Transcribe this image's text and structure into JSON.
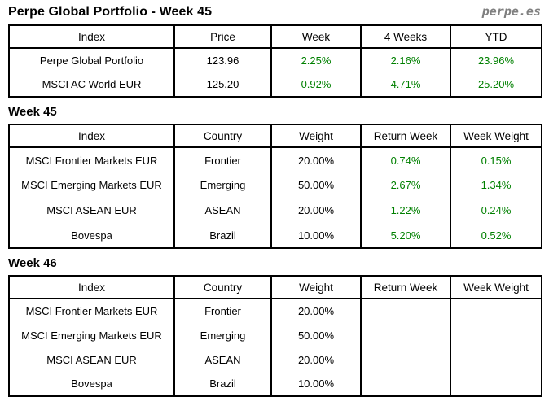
{
  "header": {
    "title": "Perpe Global Portfolio - Week 45",
    "brand": "perpe.es"
  },
  "colors": {
    "positive_value_green": "#008000",
    "text_black": "#000000",
    "brand_gray": "#808080",
    "table_border": "#000000"
  },
  "summary_table": {
    "columns": [
      "Index",
      "Price",
      "Week",
      "4 Weeks",
      "YTD"
    ],
    "rows": [
      [
        "Perpe Global Portfolio",
        "123.96",
        "2.25%",
        "2.16%",
        "23.96%"
      ],
      [
        "MSCI AC World EUR",
        "125.20",
        "0.92%",
        "4.71%",
        "25.20%"
      ]
    ]
  },
  "week45_section": {
    "heading": "Week 45",
    "columns": [
      "Index",
      "Country",
      "Weight",
      "Return Week",
      "Week Weight"
    ],
    "rows": [
      [
        "MSCI Frontier Markets EUR",
        "Frontier",
        "20.00%",
        "0.74%",
        "0.15%"
      ],
      [
        "MSCI Emerging Markets EUR",
        "Emerging",
        "50.00%",
        "2.67%",
        "1.34%"
      ],
      [
        "MSCI ASEAN EUR",
        "ASEAN",
        "20.00%",
        "1.22%",
        "0.24%"
      ],
      [
        "Bovespa",
        "Brazil",
        "10.00%",
        "5.20%",
        "0.52%"
      ]
    ]
  },
  "week46_section": {
    "heading": "Week 46",
    "columns": [
      "Index",
      "Country",
      "Weight",
      "Return Week",
      "Week Weight"
    ],
    "rows": [
      [
        "MSCI Frontier Markets EUR",
        "Frontier",
        "20.00%",
        "",
        ""
      ],
      [
        "MSCI Emerging Markets EUR",
        "Emerging",
        "50.00%",
        "",
        ""
      ],
      [
        "MSCI ASEAN EUR",
        "ASEAN",
        "20.00%",
        "",
        ""
      ],
      [
        "Bovespa",
        "Brazil",
        "10.00%",
        "",
        ""
      ]
    ]
  }
}
